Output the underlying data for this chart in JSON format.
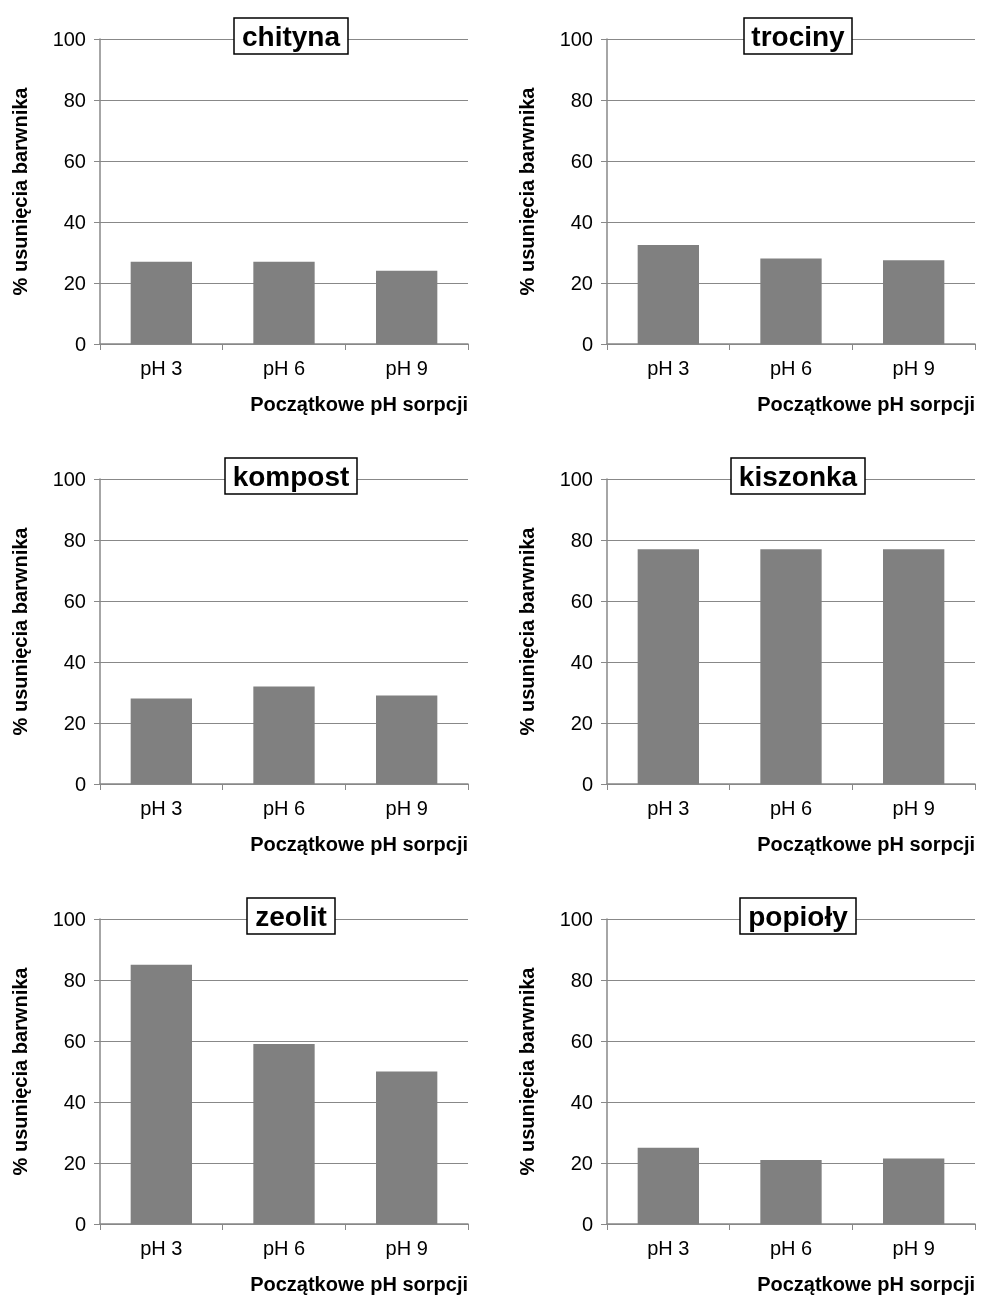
{
  "chart_data": [
    {
      "type": "bar",
      "title": "chityna",
      "categories": [
        "pH 3",
        "pH 6",
        "pH 9"
      ],
      "values": [
        27,
        27,
        24
      ],
      "color": "#808080",
      "xlabel": "Początkowe pH sorpcji",
      "ylabel": "% usunięcia barwnika",
      "ylim": [
        0,
        100
      ],
      "yticks": [
        0,
        20,
        40,
        60,
        80,
        100
      ],
      "grid": "y"
    },
    {
      "type": "bar",
      "title": "trociny",
      "categories": [
        "pH 3",
        "pH 6",
        "pH 9"
      ],
      "values": [
        32.5,
        28,
        27.5
      ],
      "color": "#808080",
      "xlabel": "Początkowe pH sorpcji",
      "ylabel": "% usunięcia barwnika",
      "ylim": [
        0,
        100
      ],
      "yticks": [
        0,
        20,
        40,
        60,
        80,
        100
      ],
      "grid": "y"
    },
    {
      "type": "bar",
      "title": "kompost",
      "categories": [
        "pH 3",
        "pH 6",
        "pH 9"
      ],
      "values": [
        28,
        32,
        29
      ],
      "color": "#808080",
      "xlabel": "Początkowe pH sorpcji",
      "ylabel": "% usunięcia barwnika",
      "ylim": [
        0,
        100
      ],
      "yticks": [
        0,
        20,
        40,
        60,
        80,
        100
      ],
      "grid": "y"
    },
    {
      "type": "bar",
      "title": "kiszonka",
      "categories": [
        "pH 3",
        "pH 6",
        "pH 9"
      ],
      "values": [
        77,
        77,
        77
      ],
      "color": "#808080",
      "xlabel": "Początkowe pH sorpcji",
      "ylabel": "% usunięcia barwnika",
      "ylim": [
        0,
        100
      ],
      "yticks": [
        0,
        20,
        40,
        60,
        80,
        100
      ],
      "grid": "y"
    },
    {
      "type": "bar",
      "title": "zeolit",
      "categories": [
        "pH 3",
        "pH 6",
        "pH 9"
      ],
      "values": [
        85,
        59,
        50
      ],
      "color": "#808080",
      "xlabel": "Początkowe pH sorpcji",
      "ylabel": "% usunięcia barwnika",
      "ylim": [
        0,
        100
      ],
      "yticks": [
        0,
        20,
        40,
        60,
        80,
        100
      ],
      "grid": "y"
    },
    {
      "type": "bar",
      "title": "popioły",
      "categories": [
        "pH 3",
        "pH 6",
        "pH 9"
      ],
      "values": [
        25,
        21,
        21.5
      ],
      "color": "#808080",
      "xlabel": "Początkowe pH sorpcji",
      "ylabel": "% usunięcia barwnika",
      "ylim": [
        0,
        100
      ],
      "yticks": [
        0,
        20,
        40,
        60,
        80,
        100
      ],
      "grid": "y"
    }
  ]
}
